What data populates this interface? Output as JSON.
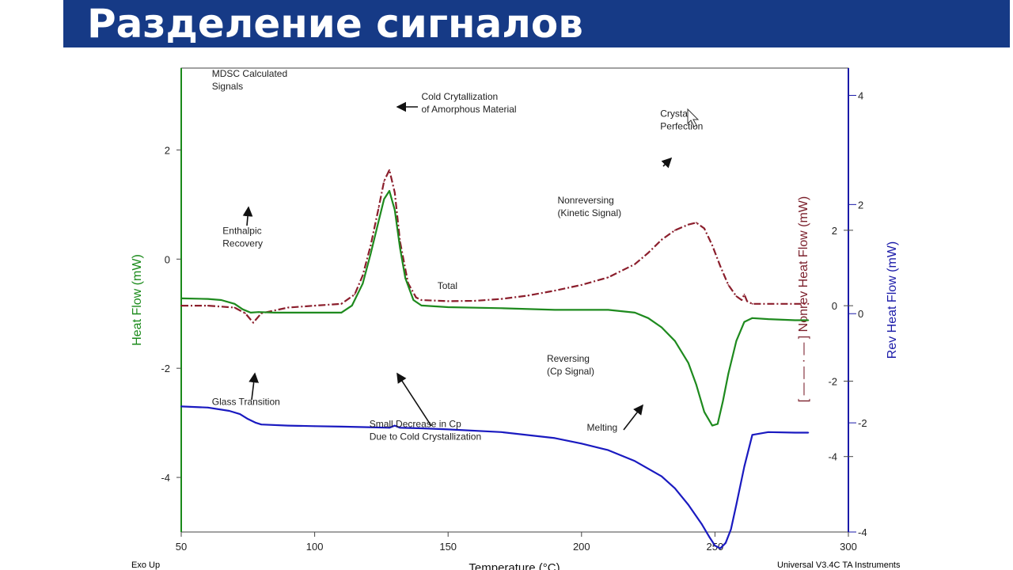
{
  "slide": {
    "title": "Разделение сигналов",
    "footer_left": "Exo Up",
    "footer_right": "Universal V3.4C TA Instruments"
  },
  "chart_data": {
    "type": "line",
    "xlabel": "Temperature (°C)",
    "xlim": [
      50,
      300
    ],
    "xticks": [
      50,
      100,
      150,
      200,
      250,
      300
    ],
    "axes": {
      "left": {
        "label": "Heat Flow (mW)",
        "ylim": [
          -5,
          3.5
        ],
        "ticks": [
          2,
          0,
          -2,
          -4
        ],
        "color": "#1a8a1a"
      },
      "right1": {
        "label": "[ — — · — ] Nonrev Heat Flow (mW)",
        "ylim": [
          -6,
          6.3
        ],
        "ticks": [
          2,
          0,
          -2,
          -4
        ],
        "color": "#7a1e2a"
      },
      "right2": {
        "label": "Rev Heat Flow (mW)",
        "ylim": [
          -4,
          4.5
        ],
        "ticks": [
          4,
          2,
          0,
          -2,
          -4
        ],
        "color": "#1a1aa8"
      }
    },
    "series": [
      {
        "name": "Nonreversing",
        "axis": "right1",
        "style": "dashed",
        "color": "#8b1e2c",
        "x": [
          50,
          60,
          70,
          74,
          77,
          80,
          90,
          100,
          110,
          115,
          118,
          121,
          124,
          126,
          128,
          130,
          132,
          135,
          138,
          140,
          150,
          160,
          170,
          180,
          190,
          200,
          210,
          220,
          225,
          230,
          235,
          240,
          243,
          246,
          249,
          252,
          255,
          258,
          260,
          261,
          262,
          264,
          270,
          280,
          285
        ],
        "y": [
          0.0,
          0.0,
          -0.05,
          -0.2,
          -0.45,
          -0.2,
          -0.05,
          0.0,
          0.05,
          0.3,
          0.8,
          1.6,
          2.6,
          3.3,
          3.6,
          3.0,
          1.7,
          0.6,
          0.22,
          0.15,
          0.12,
          0.13,
          0.18,
          0.27,
          0.4,
          0.55,
          0.75,
          1.1,
          1.4,
          1.75,
          2.0,
          2.15,
          2.2,
          2.05,
          1.6,
          1.05,
          0.55,
          0.25,
          0.15,
          0.3,
          0.12,
          0.05,
          0.05,
          0.05,
          0.05
        ]
      },
      {
        "name": "Total",
        "axis": "left",
        "style": "solid",
        "color": "#1e8a1e",
        "x": [
          50,
          60,
          65,
          70,
          73,
          76,
          79,
          85,
          95,
          110,
          114,
          118,
          121,
          124,
          126,
          128,
          130,
          132,
          134,
          137,
          140,
          150,
          170,
          190,
          210,
          220,
          225,
          230,
          235,
          240,
          243,
          246,
          249,
          251,
          253,
          255,
          258,
          261,
          264,
          270,
          280,
          285
        ],
        "y": [
          -0.72,
          -0.73,
          -0.75,
          -0.82,
          -0.92,
          -0.98,
          -0.97,
          -0.98,
          -0.98,
          -0.98,
          -0.85,
          -0.45,
          0.1,
          0.7,
          1.1,
          1.25,
          0.9,
          0.2,
          -0.35,
          -0.75,
          -0.85,
          -0.88,
          -0.9,
          -0.93,
          -0.93,
          -0.98,
          -1.08,
          -1.25,
          -1.5,
          -1.9,
          -2.3,
          -2.8,
          -3.05,
          -3.02,
          -2.6,
          -2.1,
          -1.5,
          -1.15,
          -1.08,
          -1.1,
          -1.12,
          -1.12
        ]
      },
      {
        "name": "Reversing",
        "axis": "right2",
        "style": "solid",
        "color": "#1a1ac0",
        "x": [
          50,
          60,
          68,
          72,
          75,
          78,
          80,
          90,
          100,
          110,
          120,
          128,
          130,
          132,
          140,
          150,
          170,
          190,
          200,
          210,
          220,
          230,
          235,
          240,
          245,
          248,
          250,
          252,
          254,
          256,
          258,
          261,
          264,
          270,
          280,
          285
        ],
        "y": [
          -1.7,
          -1.72,
          -1.78,
          -1.84,
          -1.93,
          -2.0,
          -2.03,
          -2.05,
          -2.06,
          -2.07,
          -2.08,
          -2.09,
          -2.05,
          -2.09,
          -2.1,
          -2.12,
          -2.17,
          -2.28,
          -2.38,
          -2.5,
          -2.7,
          -2.98,
          -3.2,
          -3.5,
          -3.85,
          -4.1,
          -4.25,
          -4.3,
          -4.2,
          -3.95,
          -3.5,
          -2.8,
          -2.22,
          -2.17,
          -2.18,
          -2.18
        ]
      }
    ],
    "annotations": [
      {
        "text": "MDSC Calculated\nSignals",
        "x": 61.5,
        "y": 3.34
      },
      {
        "text": "Cold Crytallization\nof Amorphous Material",
        "x": 140,
        "y": 2.92
      },
      {
        "text": "Crystal\nPerfection",
        "x": 229.5,
        "y": 2.61
      },
      {
        "text": "Nonreversing\n(Kinetic Signal)",
        "x": 191,
        "y": 1.02
      },
      {
        "text": "Enthalpic\nRecovery",
        "x": 65.5,
        "y": 0.46
      },
      {
        "text": "Total",
        "x": 146,
        "y": -0.55
      },
      {
        "text": "Reversing\n(Cp Signal)",
        "x": 187,
        "y": -1.88
      },
      {
        "text": "Glass Transition",
        "x": 61.5,
        "y": -2.67
      },
      {
        "text": "Small Decrease in Cp\nDue to Cold Crystallization",
        "x": 120.5,
        "y": -3.08
      },
      {
        "text": "Melting",
        "x": 202,
        "y": -3.14
      }
    ]
  }
}
